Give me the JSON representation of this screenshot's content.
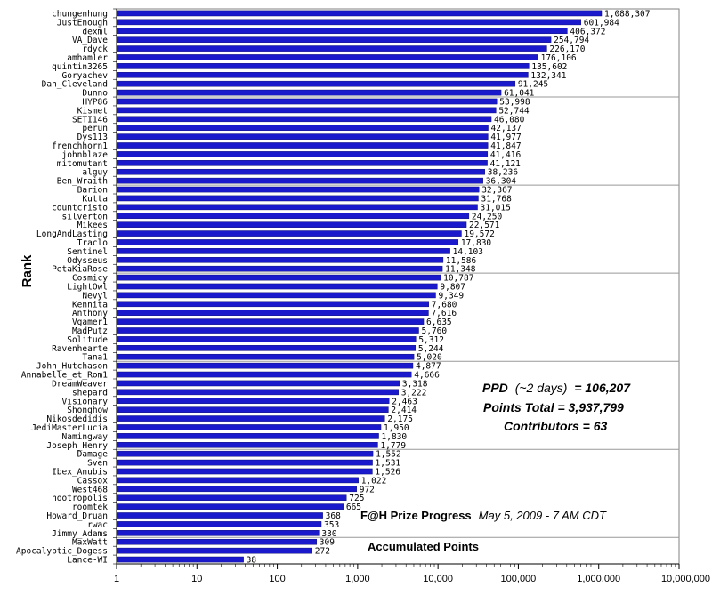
{
  "chart_data": {
    "type": "bar",
    "orientation": "horizontal",
    "x_scale": "log",
    "xlim": [
      1,
      10000000
    ],
    "x_ticks": [
      "1",
      "10",
      "100",
      "1,000",
      "10,000",
      "100,000",
      "1,000,000",
      "10,000,000"
    ],
    "ylabel": "Rank",
    "bar_color": "#1a1acc",
    "grid": true,
    "categories": [
      "chungenhung",
      "JustEnough",
      "dexml",
      "VA_Dave",
      "rdyck",
      "amhamler",
      "quintin3265",
      "Goryachev",
      "Dan_Cleveland",
      "Dunno",
      "HYP86",
      "Kismet",
      "SETI146",
      "perun",
      "Dys113",
      "frenchhorn1",
      "johnblaze",
      "mitomutant",
      "alguy",
      "Ben_Wraith",
      "Barion",
      "Kutta",
      "countcristo",
      "silverton",
      "Mikees",
      "LongAndLasting",
      "Traclo",
      "Sentinel",
      "Odysseus",
      "PetaKiaRose",
      "Cosmicy",
      "LightOwl",
      "Nevyl",
      "Kennita",
      "Anthony",
      "Vgamer1",
      "MadPutz",
      "Solitude",
      "Ravenhearte",
      "Tana1",
      "John_Hutchason",
      "Annabelle_et_Rom1",
      "DreamWeaver",
      "shepard",
      "Visionary",
      "Shonghow",
      "Nikosdedidis",
      "JediMasterLucia",
      "Namingway",
      "Joseph_Henry",
      "Damage",
      "Sven",
      "Ibex_Anubis",
      "Cassox",
      "West468",
      "nootropolis",
      "roomtek",
      "Howard_Druan",
      "rwac",
      "Jimmy_Adams",
      "MaxWatt",
      "Apocalyptic_Dogess",
      "Lance-WI"
    ],
    "values": [
      1088307,
      601984,
      406372,
      254794,
      226170,
      176106,
      135602,
      132341,
      91245,
      61041,
      53998,
      52744,
      46080,
      42137,
      41977,
      41847,
      41416,
      41121,
      38236,
      36304,
      32367,
      31768,
      31015,
      24250,
      22571,
      19572,
      17830,
      14103,
      11586,
      11348,
      10787,
      9807,
      9349,
      7680,
      7616,
      6635,
      5760,
      5312,
      5244,
      5020,
      4877,
      4666,
      3318,
      3222,
      2463,
      2414,
      2175,
      1950,
      1830,
      1779,
      1552,
      1531,
      1526,
      1022,
      972,
      725,
      665,
      368,
      353,
      330,
      309,
      272,
      38
    ],
    "value_labels": [
      "1,088,307",
      "601,984",
      "406,372",
      "254,794",
      "226,170",
      "176,106",
      "135,602",
      "132,341",
      "91,245",
      "61,041",
      "53,998",
      "52,744",
      "46,080",
      "42,137",
      "41,977",
      "41,847",
      "41,416",
      "41,121",
      "38,236",
      "36,304",
      "32,367",
      "31,768",
      "31,015",
      "24,250",
      "22,571",
      "19,572",
      "17,830",
      "14,103",
      "11,586",
      "11,348",
      "10,787",
      "9,807",
      "9,349",
      "7,680",
      "7,616",
      "6,635",
      "5,760",
      "5,312",
      "5,244",
      "5,020",
      "4,877",
      "4,666",
      "3,318",
      "3,222",
      "2,463",
      "2,414",
      "2,175",
      "1,950",
      "1,830",
      "1,779",
      "1,552",
      "1,531",
      "1,526",
      "1,022",
      "972",
      "725",
      "665",
      "368",
      "353",
      "330",
      "309",
      "272",
      "38"
    ],
    "annotations": {
      "ppd_label": "PPD",
      "ppd_note": "(~2 days)",
      "ppd_value": "= 106,207",
      "points_total": "Points Total = 3,937,799",
      "contributors": "Contributors = 63",
      "progress_title": "F@H Prize Progress",
      "progress_date": "May 5, 2009 - 7 AM CDT",
      "accumulated": "Accumulated Points"
    }
  }
}
